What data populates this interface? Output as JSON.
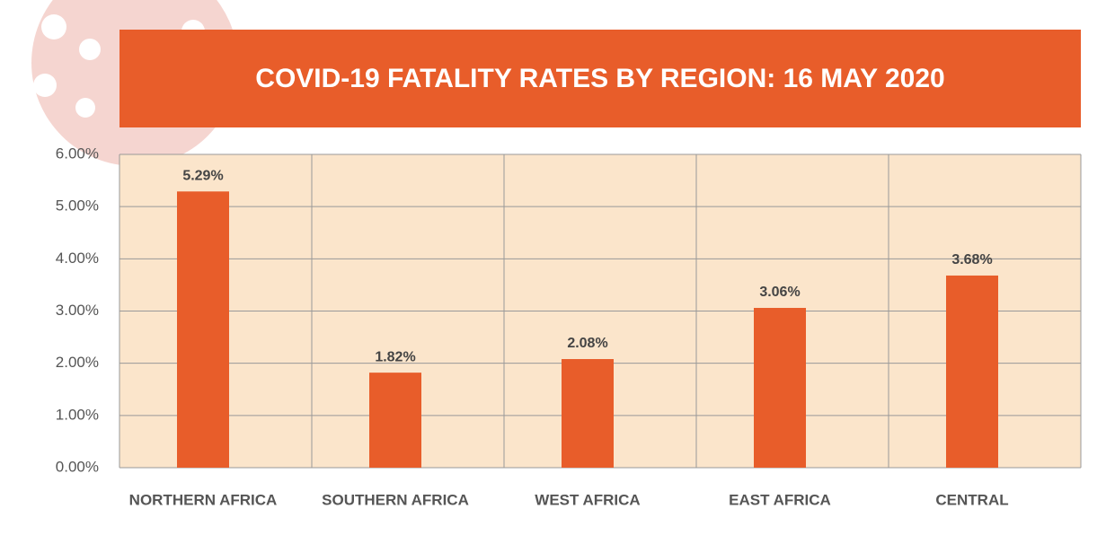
{
  "chart_data": {
    "type": "bar",
    "title": "COVID-19 FATALITY RATES BY REGION: 16 MAY 2020",
    "categories": [
      "NORTHERN AFRICA",
      "SOUTHERN AFRICA",
      "WEST AFRICA",
      "EAST AFRICA",
      "CENTRAL"
    ],
    "values": [
      5.29,
      1.82,
      2.08,
      3.06,
      3.68
    ],
    "value_labels": [
      "5.29%",
      "1.82%",
      "2.08%",
      "3.06%",
      "3.68%"
    ],
    "color": "#e85d2a",
    "ylim": [
      0,
      6
    ],
    "yticks": [
      {
        "value": 0,
        "label": "0.00%"
      },
      {
        "value": 1,
        "label": "1.00%"
      },
      {
        "value": 2,
        "label": "2.00%"
      },
      {
        "value": 3,
        "label": "3.00%"
      },
      {
        "value": 4,
        "label": "4.00%"
      },
      {
        "value": 5,
        "label": "5.00%"
      },
      {
        "value": 6,
        "label": "6.00%"
      }
    ],
    "grid": true
  }
}
